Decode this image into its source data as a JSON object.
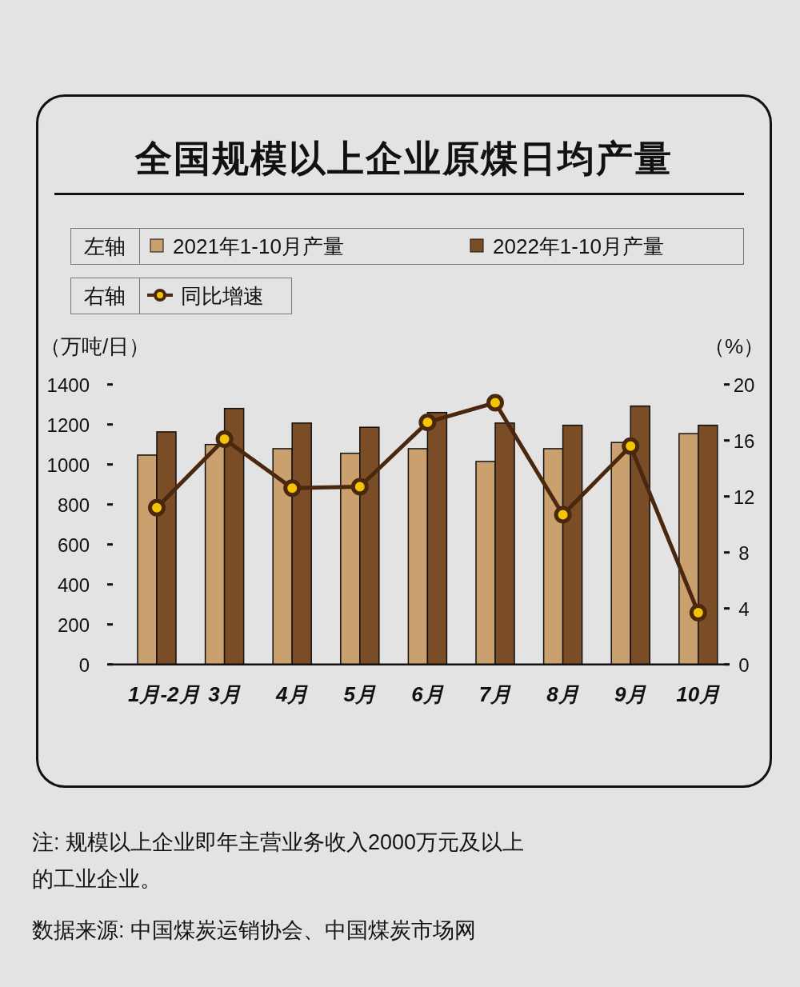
{
  "chart_data": {
    "type": "bar",
    "title": "全国规模以上企业原煤日均产量",
    "ylabel": "（万吨/日）",
    "y2label": "（%）",
    "categories": [
      "1月-2月",
      "3月",
      "4月",
      "5月",
      "6月",
      "7月",
      "8月",
      "9月",
      "10月"
    ],
    "series": [
      {
        "name": "2021年1-10月产量",
        "color": "#c9a06e",
        "values": [
          1047,
          1100,
          1079,
          1056,
          1079,
          1015,
          1079,
          1110,
          1154
        ]
      },
      {
        "name": "2022年1-10月产量",
        "color": "#7a4d26",
        "values": [
          1163,
          1280,
          1207,
          1186,
          1260,
          1207,
          1196,
          1292,
          1196
        ]
      },
      {
        "name": "同比增速",
        "type": "line",
        "axis": "y2",
        "color": "#4a2810",
        "marker": "circle",
        "values": [
          11.2,
          16.1,
          12.6,
          12.7,
          17.3,
          18.7,
          10.7,
          15.6,
          3.7
        ]
      }
    ],
    "ylim": [
      0,
      1400
    ],
    "yticks": [
      0,
      200,
      400,
      600,
      800,
      1000,
      1200,
      1400
    ],
    "y2lim": [
      0,
      20
    ],
    "y2ticks": [
      0,
      4,
      8,
      12,
      16,
      20
    ],
    "legend": "top left",
    "grid": false,
    "annotations": [
      "左轴",
      "右轴",
      "注: 规模以上企业即年主营业务收入2000万元及以上的工业企业。",
      "数据来源: 中国煤炭运销协会、中国煤炭市场网"
    ]
  }
}
